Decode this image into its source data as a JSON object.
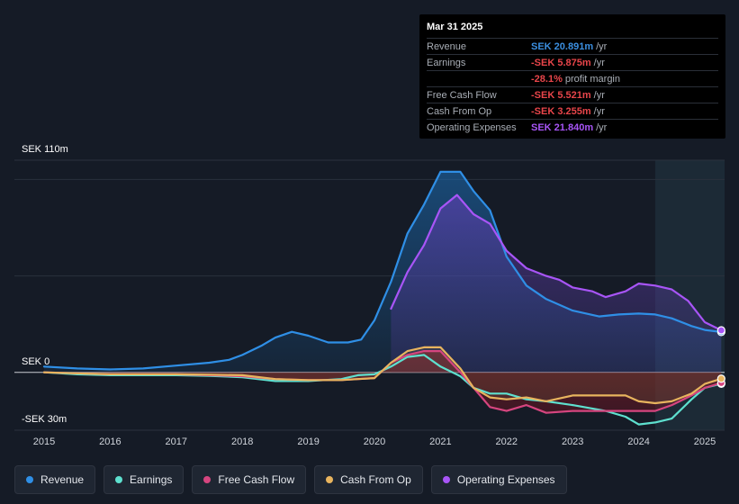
{
  "tooltip": {
    "date": "Mar 31 2025",
    "rows": [
      {
        "label": "Revenue",
        "value": "SEK 20.891m",
        "unit": "/yr",
        "color": "#3b8fe0"
      },
      {
        "label": "Earnings",
        "value": "-SEK 5.875m",
        "unit": "/yr",
        "color": "#e8454a"
      },
      {
        "label": "",
        "value": "-28.1%",
        "unit": "profit margin",
        "color": "#e8454a"
      },
      {
        "label": "Free Cash Flow",
        "value": "-SEK 5.521m",
        "unit": "/yr",
        "color": "#e8454a"
      },
      {
        "label": "Cash From Op",
        "value": "-SEK 3.255m",
        "unit": "/yr",
        "color": "#e8454a"
      },
      {
        "label": "Operating Expenses",
        "value": "SEK 21.840m",
        "unit": "/yr",
        "color": "#a855f7"
      }
    ]
  },
  "legend": [
    {
      "label": "Revenue",
      "color": "#2f8fe6"
    },
    {
      "label": "Earnings",
      "color": "#5ee0cf"
    },
    {
      "label": "Free Cash Flow",
      "color": "#d6457f"
    },
    {
      "label": "Cash From Op",
      "color": "#e8b45e"
    },
    {
      "label": "Operating Expenses",
      "color": "#a855f7"
    }
  ],
  "chart_data": {
    "type": "line",
    "title": "",
    "y_labels": [
      "SEK 110m",
      "SEK 0",
      "-SEK 30m"
    ],
    "ylim": [
      -30,
      110
    ],
    "x_ticks": [
      "2015",
      "2016",
      "2017",
      "2018",
      "2019",
      "2020",
      "2021",
      "2022",
      "2023",
      "2024",
      "2025"
    ],
    "xlim": [
      2014.55,
      2025.3
    ],
    "forecast_start": 2024.25,
    "units": "SEK m",
    "series": [
      {
        "name": "Revenue",
        "color": "#2f8fe6",
        "x": [
          2015.0,
          2015.5,
          2016.0,
          2016.5,
          2017.0,
          2017.5,
          2017.8,
          2018.0,
          2018.3,
          2018.5,
          2018.75,
          2019.0,
          2019.3,
          2019.6,
          2019.8,
          2020.0,
          2020.25,
          2020.5,
          2020.75,
          2021.0,
          2021.3,
          2021.5,
          2021.75,
          2022.0,
          2022.3,
          2022.6,
          2023.0,
          2023.4,
          2023.7,
          2024.0,
          2024.25,
          2024.5,
          2024.8,
          2025.0,
          2025.25
        ],
        "y": [
          3,
          2,
          1.5,
          2,
          3.5,
          5,
          6.5,
          9,
          14,
          18,
          21,
          19,
          15.5,
          15.5,
          17,
          27,
          47,
          72,
          87,
          104,
          104,
          94,
          84,
          60,
          45,
          38,
          32,
          29,
          30,
          30.5,
          30,
          28,
          24,
          22,
          20.9
        ]
      },
      {
        "name": "Earnings",
        "color": "#5ee0cf",
        "x": [
          2015.0,
          2015.5,
          2016.0,
          2016.5,
          2017.0,
          2017.5,
          2018.0,
          2018.5,
          2019.0,
          2019.5,
          2019.75,
          2020.0,
          2020.25,
          2020.5,
          2020.75,
          2021.0,
          2021.3,
          2021.5,
          2021.75,
          2022.0,
          2022.3,
          2022.6,
          2023.0,
          2023.5,
          2023.8,
          2024.0,
          2024.25,
          2024.5,
          2024.8,
          2025.0,
          2025.25
        ],
        "y": [
          0,
          -1,
          -1.5,
          -1.5,
          -1.5,
          -1.8,
          -2.5,
          -4.5,
          -4.5,
          -3.5,
          -1.5,
          -1,
          3,
          8,
          9,
          3,
          -2,
          -8,
          -11,
          -11,
          -14,
          -15,
          -17,
          -20,
          -23,
          -27,
          -26,
          -24,
          -14,
          -8,
          -5.9
        ]
      },
      {
        "name": "Free Cash Flow",
        "color": "#d6457f",
        "x": [
          2015.0,
          2015.5,
          2016.0,
          2016.5,
          2017.0,
          2017.5,
          2018.0,
          2018.5,
          2019.0,
          2019.5,
          2019.75,
          2020.0,
          2020.25,
          2020.5,
          2020.75,
          2021.0,
          2021.3,
          2021.5,
          2021.75,
          2022.0,
          2022.3,
          2022.6,
          2023.0,
          2023.5,
          2023.8,
          2024.0,
          2024.25,
          2024.5,
          2024.8,
          2025.0,
          2025.25
        ],
        "y": [
          0,
          -0.5,
          -1,
          -1,
          -1,
          -1.5,
          -2,
          -3.5,
          -4,
          -4,
          -3.5,
          -3,
          5,
          9,
          11,
          11,
          0,
          -8,
          -18,
          -20,
          -17,
          -21,
          -20,
          -20,
          -20,
          -20,
          -20,
          -17,
          -12,
          -8,
          -5.5
        ]
      },
      {
        "name": "Cash From Op",
        "color": "#e8b45e",
        "x": [
          2015.0,
          2015.5,
          2016.0,
          2016.5,
          2017.0,
          2017.5,
          2018.0,
          2018.5,
          2019.0,
          2019.5,
          2019.75,
          2020.0,
          2020.25,
          2020.5,
          2020.75,
          2021.0,
          2021.3,
          2021.5,
          2021.75,
          2022.0,
          2022.3,
          2022.6,
          2023.0,
          2023.5,
          2023.8,
          2024.0,
          2024.25,
          2024.5,
          2024.8,
          2025.0,
          2025.25
        ],
        "y": [
          0,
          -0.5,
          -1,
          -1,
          -1,
          -1.2,
          -1.5,
          -3.5,
          -4,
          -4,
          -3.5,
          -3,
          5,
          11,
          13,
          13,
          2,
          -8,
          -13,
          -14,
          -13,
          -15,
          -12,
          -12,
          -12,
          -15,
          -16,
          -15,
          -11,
          -6,
          -3.3
        ]
      },
      {
        "name": "Operating Expenses",
        "color": "#a855f7",
        "x": [
          2020.25,
          2020.5,
          2020.75,
          2021.0,
          2021.25,
          2021.5,
          2021.75,
          2022.0,
          2022.3,
          2022.6,
          2022.8,
          2023.0,
          2023.3,
          2023.5,
          2023.8,
          2024.0,
          2024.25,
          2024.5,
          2024.75,
          2025.0,
          2025.25
        ],
        "y": [
          33,
          52,
          66,
          85,
          92,
          82,
          77,
          63,
          54,
          50,
          48,
          44,
          42,
          39,
          42,
          46,
          45,
          43,
          37,
          26,
          21.8
        ]
      }
    ]
  }
}
